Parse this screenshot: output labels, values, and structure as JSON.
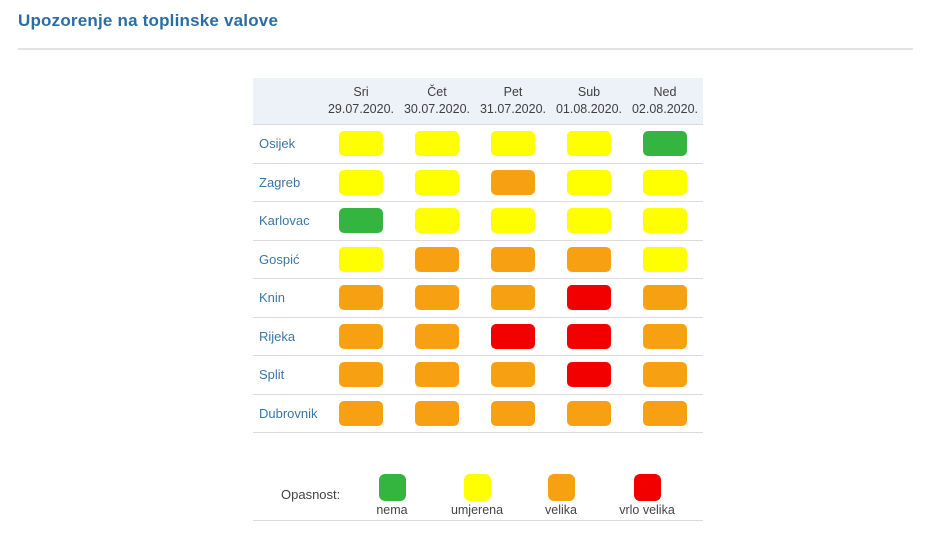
{
  "page": {
    "title": "Upozorenje na toplinske valove"
  },
  "chart_data": {
    "type": "heatmap",
    "title": "Upozorenje na toplinske valove",
    "columns": [
      {
        "day": "Sri",
        "date": "29.07.2020."
      },
      {
        "day": "Čet",
        "date": "30.07.2020."
      },
      {
        "day": "Pet",
        "date": "31.07.2020."
      },
      {
        "day": "Sub",
        "date": "01.08.2020."
      },
      {
        "day": "Ned",
        "date": "02.08.2020."
      }
    ],
    "levels": {
      "nema": "#33b540",
      "umjerena": "#ffff00",
      "velika": "#f7a112",
      "vrlo velika": "#f20000"
    },
    "rows": [
      {
        "city": "Osijek",
        "values": [
          "umjerena",
          "umjerena",
          "umjerena",
          "umjerena",
          "nema"
        ]
      },
      {
        "city": "Zagreb",
        "values": [
          "umjerena",
          "umjerena",
          "velika",
          "umjerena",
          "umjerena"
        ]
      },
      {
        "city": "Karlovac",
        "values": [
          "nema",
          "umjerena",
          "umjerena",
          "umjerena",
          "umjerena"
        ]
      },
      {
        "city": "Gospić",
        "values": [
          "umjerena",
          "velika",
          "velika",
          "velika",
          "umjerena"
        ]
      },
      {
        "city": "Knin",
        "values": [
          "velika",
          "velika",
          "velika",
          "vrlo velika",
          "velika"
        ]
      },
      {
        "city": "Rijeka",
        "values": [
          "velika",
          "velika",
          "vrlo velika",
          "vrlo velika",
          "velika"
        ]
      },
      {
        "city": "Split",
        "values": [
          "velika",
          "velika",
          "velika",
          "vrlo velika",
          "velika"
        ]
      },
      {
        "city": "Dubrovnik",
        "values": [
          "velika",
          "velika",
          "velika",
          "velika",
          "velika"
        ]
      }
    ],
    "legend": {
      "label": "Opasnost:",
      "items": [
        {
          "label": "nema",
          "color": "#33b540"
        },
        {
          "label": "umjerena",
          "color": "#ffff00"
        },
        {
          "label": "velika",
          "color": "#f7a112"
        },
        {
          "label": "vrlo velika",
          "color": "#f20000"
        }
      ]
    },
    "layout": {
      "grid": "off",
      "legend_position": "bottom"
    }
  }
}
